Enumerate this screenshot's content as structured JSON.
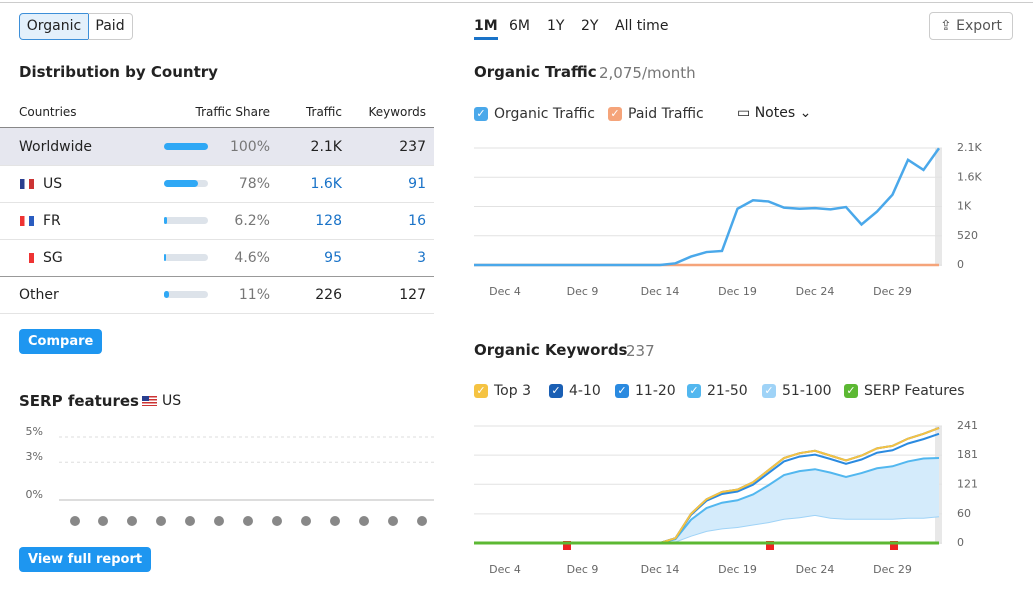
{
  "source_tabs": [
    "Organic",
    "Paid"
  ],
  "distribution": {
    "title": "Distribution by Country",
    "columns": [
      "Countries",
      "Traffic Share",
      "Traffic",
      "Keywords"
    ],
    "rows": [
      {
        "country": "Worldwide",
        "share": 100,
        "share_label": "100%",
        "traffic": "2.1K",
        "keywords": 237
      },
      {
        "country": "US",
        "share": 78,
        "share_label": "78%",
        "traffic": "1.6K",
        "keywords": 91
      },
      {
        "country": "FR",
        "share": 6.2,
        "share_label": "6.2%",
        "traffic": "128",
        "keywords": 16
      },
      {
        "country": "SG",
        "share": 4.6,
        "share_label": "4.6%",
        "traffic": "95",
        "keywords": 3
      },
      {
        "country": "Other",
        "share": 11,
        "share_label": "11%",
        "traffic": "226",
        "keywords": 127
      }
    ],
    "button": "Compare"
  },
  "serp": {
    "title": "SERP features",
    "country": "US",
    "ylim": [
      0,
      5
    ],
    "yticks": [
      {
        "value": 5,
        "label": "5%"
      },
      {
        "value": 3,
        "label": "3%"
      },
      {
        "value": 0,
        "label": "0%"
      }
    ],
    "button": "View full report"
  },
  "periods": [
    "1M",
    "6M",
    "1Y",
    "2Y",
    "All time"
  ],
  "export": "Export",
  "traffic_chart": {
    "type": "line",
    "title": "Organic Traffic",
    "subtitle": "2,075/month",
    "notes": "Notes",
    "x": [
      2,
      3,
      4,
      5,
      6,
      7,
      8,
      9,
      10,
      11,
      12,
      13,
      14,
      15,
      16,
      17,
      18,
      19,
      20,
      21,
      22,
      23,
      24,
      25,
      26,
      27,
      28,
      29,
      30,
      31,
      32
    ],
    "xlim": [
      2,
      32
    ],
    "xticks": [
      {
        "value": 4,
        "label": "Dec 4"
      },
      {
        "value": 9,
        "label": "Dec 9"
      },
      {
        "value": 14,
        "label": "Dec 14"
      },
      {
        "value": 19,
        "label": "Dec 19"
      },
      {
        "value": 24,
        "label": "Dec 24"
      },
      {
        "value": 29,
        "label": "Dec 29"
      }
    ],
    "ylim": [
      0,
      2080
    ],
    "yticks": [
      0,
      520,
      {
        "value": 1040,
        "label": "1K"
      },
      {
        "value": 1560,
        "label": "1.6K"
      },
      {
        "value": 2080,
        "label": "2.1K"
      }
    ],
    "series": [
      {
        "name": "Organic Traffic",
        "color": "#4aa8ea",
        "values": [
          0,
          0,
          0,
          0,
          0,
          0,
          0,
          0,
          0,
          0,
          0,
          0,
          0,
          30,
          150,
          230,
          250,
          1000,
          1150,
          1130,
          1020,
          1000,
          1010,
          990,
          1030,
          720,
          950,
          1250,
          1870,
          1690,
          2075
        ]
      },
      {
        "name": "Paid Traffic",
        "color": "#f5a47a",
        "values": [
          0,
          0,
          0,
          0,
          0,
          0,
          0,
          0,
          0,
          0,
          0,
          0,
          0,
          0,
          0,
          0,
          0,
          0,
          0,
          0,
          0,
          0,
          0,
          0,
          0,
          0,
          0,
          0,
          0,
          0,
          0
        ]
      }
    ]
  },
  "keywords_chart": {
    "type": "stacked_area",
    "title": "Organic Keywords",
    "subtitle": "237",
    "x": [
      2,
      3,
      4,
      5,
      6,
      7,
      8,
      9,
      10,
      11,
      12,
      13,
      14,
      15,
      16,
      17,
      18,
      19,
      20,
      21,
      22,
      23,
      24,
      25,
      26,
      27,
      28,
      29,
      30,
      31,
      32
    ],
    "xlim": [
      2,
      32
    ],
    "xticks": [
      {
        "value": 4,
        "label": "Dec 4"
      },
      {
        "value": 9,
        "label": "Dec 9"
      },
      {
        "value": 14,
        "label": "Dec 14"
      },
      {
        "value": 19,
        "label": "Dec 19"
      },
      {
        "value": 24,
        "label": "Dec 24"
      },
      {
        "value": 29,
        "label": "Dec 29"
      }
    ],
    "ylim": [
      0,
      241
    ],
    "yticks": [
      0,
      60,
      121,
      181,
      241
    ],
    "series": [
      {
        "name": "Top 3",
        "color": "#f5c342",
        "values": [
          0,
          0,
          0,
          0,
          0,
          0,
          0,
          0,
          0,
          0,
          0,
          0,
          0,
          0,
          0,
          0,
          0,
          0,
          0,
          0,
          0,
          0,
          0,
          0,
          0,
          0,
          0,
          0,
          0,
          0,
          0
        ]
      },
      {
        "name": "4-10",
        "color": "#1a5fb4",
        "values": [
          0,
          0,
          0,
          0,
          0,
          0,
          0,
          0,
          0,
          0,
          0,
          0,
          0,
          0,
          2,
          3,
          4,
          4,
          5,
          6,
          7,
          7,
          8,
          7,
          7,
          8,
          9,
          9,
          10,
          11,
          12
        ]
      },
      {
        "name": "11-20",
        "color": "#2a8ae0",
        "values": [
          0,
          0,
          0,
          0,
          0,
          0,
          0,
          0,
          0,
          0,
          0,
          0,
          0,
          2,
          10,
          15,
          18,
          18,
          20,
          25,
          28,
          30,
          30,
          28,
          27,
          28,
          32,
          33,
          37,
          40,
          50
        ]
      },
      {
        "name": "21-50",
        "color": "#52b7ef",
        "values": [
          0,
          0,
          0,
          0,
          0,
          0,
          0,
          0,
          0,
          0,
          0,
          0,
          0,
          5,
          33,
          47,
          53,
          55,
          62,
          76,
          90,
          95,
          94,
          93,
          86,
          94,
          104,
          108,
          116,
          122,
          120
        ]
      },
      {
        "name": "51-100",
        "color": "#9fd3f7",
        "values": [
          0,
          0,
          0,
          0,
          0,
          0,
          0,
          0,
          0,
          0,
          0,
          0,
          0,
          3,
          15,
          25,
          30,
          33,
          38,
          43,
          50,
          53,
          58,
          52,
          50,
          50,
          50,
          50,
          52,
          52,
          55
        ]
      },
      {
        "name": "SERP Features",
        "color": "#5cb833",
        "values": [
          0,
          0,
          0,
          0,
          0,
          0,
          0,
          0,
          0,
          0,
          0,
          0,
          0,
          0,
          0,
          0,
          0,
          0,
          0,
          0,
          0,
          0,
          0,
          0,
          0,
          0,
          0,
          0,
          0,
          0,
          0
        ]
      }
    ]
  }
}
